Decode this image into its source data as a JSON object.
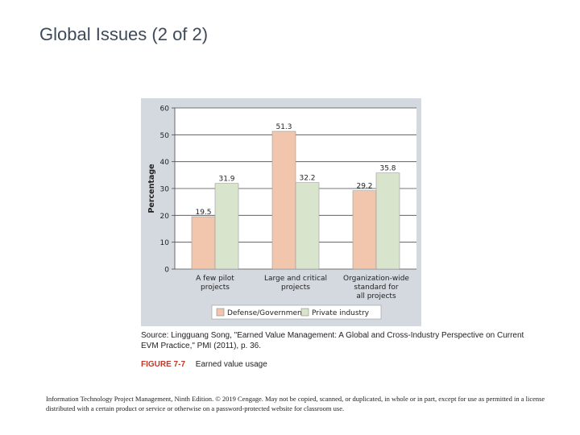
{
  "slide": {
    "title": "Global Issues (2 of 2)"
  },
  "source_text": "Source: Lingguang Song, \"Earned Value Management: A Global and Cross-Industry Perspective on Current EVM Practice,\" PMI (2011), p. 36.",
  "figure": {
    "number": "FIGURE 7-7",
    "caption": "Earned value usage"
  },
  "copyright_text": "Information Technology Project Management, Ninth Edition. © 2019 Cengage. May not be copied, scanned, or duplicated, in whole or in part, except for use as permitted in a license distributed with a certain product or service or otherwise on a password-protected website for classroom use.",
  "colors": {
    "defense": "#f2c5ad",
    "private": "#d9e4cd",
    "panel": "#d4d9df",
    "plot_bg": "#ffffff"
  },
  "chart_data": {
    "type": "bar",
    "title": "",
    "xlabel": "",
    "ylabel": "Percentage",
    "ylim": [
      0,
      60
    ],
    "yticks": [
      0,
      10,
      20,
      30,
      40,
      50,
      60
    ],
    "grid": true,
    "legend_position": "bottom",
    "categories": [
      [
        "A few pilot",
        "projects"
      ],
      [
        "Large and critical",
        "projects"
      ],
      [
        "Organization-wide",
        "standard for",
        "all projects"
      ]
    ],
    "series": [
      {
        "name": "Defense/Government",
        "values": [
          19.5,
          51.3,
          29.2
        ]
      },
      {
        "name": "Private industry",
        "values": [
          31.9,
          32.2,
          35.8
        ]
      }
    ]
  }
}
